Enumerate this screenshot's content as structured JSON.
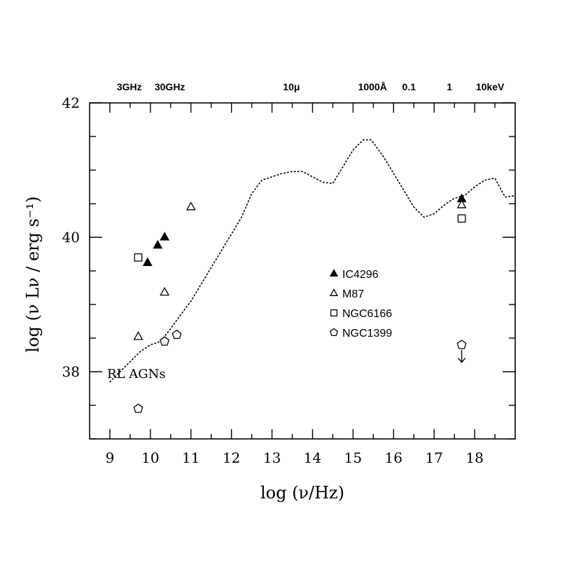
{
  "chart_data": {
    "type": "scatter",
    "xlabel": "log (ν/Hz)",
    "ylabel": "log (ν Lν / erg s⁻¹)",
    "xlim": [
      8.5,
      19.0
    ],
    "ylim": [
      37.0,
      42.0
    ],
    "x_ticks": [
      "9",
      "10",
      "11",
      "12",
      "13",
      "14",
      "15",
      "16",
      "17",
      "18"
    ],
    "y_ticks": [
      "38",
      "40",
      "42"
    ],
    "top_axis_labels": [
      {
        "x": 9.48,
        "label": "3GHz"
      },
      {
        "x": 10.48,
        "label": "30GHz"
      },
      {
        "x": 13.48,
        "label": "10μ"
      },
      {
        "x": 15.48,
        "label": "1000Å"
      },
      {
        "x": 16.38,
        "label": "0.1"
      },
      {
        "x": 17.38,
        "label": "1"
      },
      {
        "x": 18.38,
        "label": "10keV"
      }
    ],
    "annotation": "RL AGNs",
    "legend_position": "center-right",
    "series": [
      {
        "name": "IC4296",
        "marker": "filled-triangle",
        "points": [
          [
            9.93,
            39.62
          ],
          [
            10.18,
            39.88
          ],
          [
            10.35,
            40.0
          ],
          [
            17.68,
            40.57
          ]
        ]
      },
      {
        "name": "M87",
        "marker": "open-triangle",
        "points": [
          [
            9.7,
            38.52
          ],
          [
            10.35,
            39.18
          ],
          [
            11.0,
            40.45
          ],
          [
            17.68,
            40.48
          ]
        ]
      },
      {
        "name": "NGC6166",
        "marker": "open-square",
        "points": [
          [
            9.7,
            39.7
          ],
          [
            17.68,
            40.28
          ]
        ]
      },
      {
        "name": "NGC1399",
        "marker": "open-pentagon",
        "points": [
          [
            9.7,
            37.45
          ],
          [
            10.35,
            38.45
          ],
          [
            10.65,
            38.55
          ],
          [
            17.68,
            38.4
          ]
        ],
        "upper_limits_x": [
          17.68
        ]
      }
    ],
    "template_curve": {
      "name": "RL AGNs",
      "style": "dotted",
      "x": [
        9.0,
        9.25,
        9.5,
        9.75,
        10.0,
        10.25,
        10.45,
        10.75,
        11.0,
        11.25,
        11.5,
        11.75,
        12.0,
        12.25,
        12.5,
        12.75,
        13.0,
        13.25,
        13.5,
        13.75,
        14.0,
        14.25,
        14.5,
        14.75,
        15.0,
        15.25,
        15.45,
        15.75,
        16.0,
        16.25,
        16.5,
        16.75,
        17.0,
        17.25,
        17.5,
        17.75,
        18.0,
        18.25,
        18.5,
        18.75,
        19.0
      ],
      "y": [
        37.85,
        38.0,
        38.15,
        38.3,
        38.4,
        38.45,
        38.6,
        38.85,
        39.05,
        39.3,
        39.55,
        39.8,
        40.05,
        40.3,
        40.65,
        40.85,
        40.9,
        40.95,
        40.98,
        40.98,
        40.9,
        40.82,
        40.8,
        41.05,
        41.3,
        41.45,
        41.45,
        41.2,
        40.95,
        40.7,
        40.45,
        40.3,
        40.35,
        40.48,
        40.58,
        40.62,
        40.75,
        40.85,
        40.88,
        40.6,
        40.62
      ]
    }
  }
}
